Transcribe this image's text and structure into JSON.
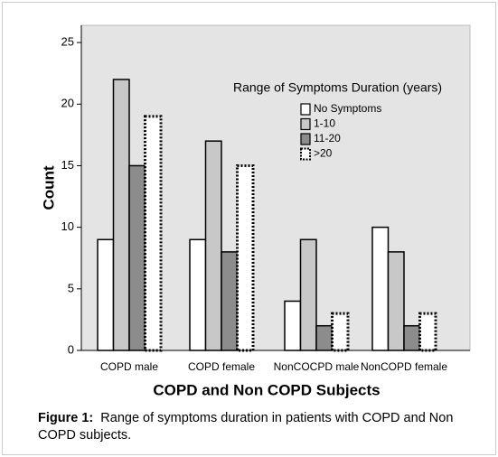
{
  "chart_data": {
    "type": "bar",
    "y_label": "Count",
    "x_label": "COPD and Non COPD Subjects",
    "categories": [
      "COPD male",
      "COPD female",
      "NonCOCPD male",
      "NonCOPD female"
    ],
    "legend_title": "Range of Symptoms Duration (years)",
    "series": [
      {
        "name": "No Symptoms",
        "color": "#ffffff",
        "values": [
          9,
          9,
          4,
          10
        ]
      },
      {
        "name": "1-10",
        "color": "#c8c8c8",
        "values": [
          22,
          17,
          9,
          8
        ]
      },
      {
        "name": "11-20",
        "color": "#8c8c8c",
        "values": [
          15,
          8,
          2,
          2
        ]
      },
      {
        "name": ">20",
        "color": "#ffffff",
        "linestyle": "dotted",
        "values": [
          19,
          15,
          3,
          3
        ]
      }
    ],
    "ylim": [
      0,
      26.4
    ],
    "yticks": [
      0,
      5,
      10,
      15,
      20,
      25
    ],
    "legend": "upper right"
  },
  "caption": {
    "label": "Figure 1:",
    "text": "Range of symptoms duration in patients with COPD and Non COPD subjects."
  }
}
